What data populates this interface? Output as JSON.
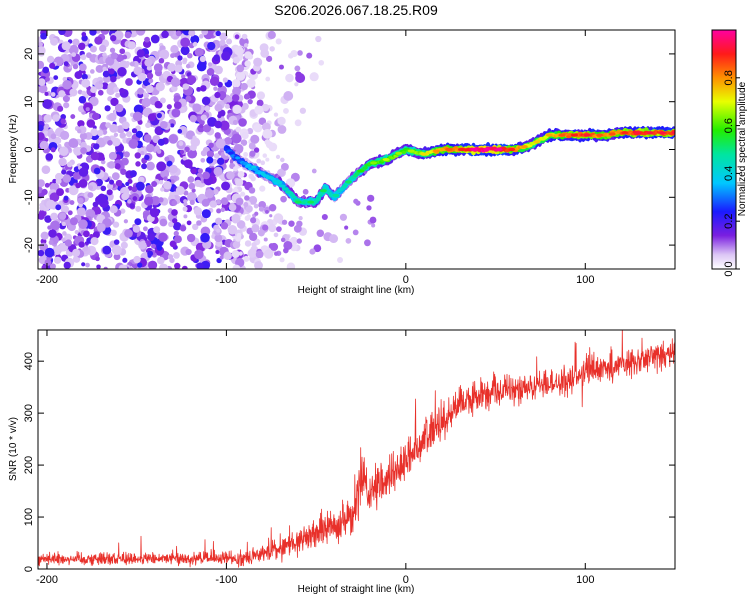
{
  "chart_data": [
    {
      "type": "heatmap",
      "title": "S206.2026.067.18.25.R09",
      "xlabel": "Height of straight line (km)",
      "ylabel": "Frequency (Hz)",
      "xlim": [
        -205,
        150
      ],
      "ylim": [
        -25,
        25
      ],
      "xticks": [
        -200,
        -100,
        0,
        100
      ],
      "xtick_labels": [
        "-200",
        "-100",
        "0",
        "100"
      ],
      "yticks": [
        -20,
        -10,
        0,
        10,
        20
      ],
      "ytick_labels": [
        "-20",
        "-10",
        "0",
        "10",
        "20"
      ],
      "colorbar": {
        "label": "Normalized spectral amplitude",
        "ticks": [
          0.0,
          0.2,
          0.4,
          0.6,
          0.8
        ],
        "tick_labels": [
          "0.0",
          "0.2",
          "0.4",
          "0.6",
          "0.8"
        ],
        "range": [
          0,
          1
        ]
      },
      "ridge": {
        "description": "peak-frequency track",
        "x": [
          -100,
          -90,
          -80,
          -70,
          -60,
          -50,
          -45,
          -40,
          -30,
          -20,
          -10,
          0,
          10,
          20,
          30,
          40,
          50,
          60,
          70,
          80,
          90,
          100,
          110,
          120,
          130,
          140,
          150
        ],
        "y": [
          0,
          -3,
          -5,
          -7,
          -11,
          -11,
          -8,
          -10,
          -6,
          -3,
          -2,
          0,
          -1,
          0,
          0,
          0,
          0,
          0,
          1,
          3,
          3,
          3,
          3,
          3.5,
          3.5,
          3.5,
          3.5
        ],
        "amplitude": [
          0.25,
          0.3,
          0.35,
          0.4,
          0.45,
          0.45,
          0.45,
          0.4,
          0.45,
          0.55,
          0.6,
          0.55,
          0.65,
          0.75,
          0.8,
          0.95,
          0.95,
          0.8,
          0.65,
          0.7,
          0.8,
          0.85,
          0.75,
          0.8,
          0.85,
          0.85,
          0.85
        ]
      },
      "noise_region_km": [
        -205,
        -95
      ]
    },
    {
      "type": "line",
      "title": "",
      "xlabel": "Height of straight line (km)",
      "ylabel": "SNR (10 * v/v)",
      "xlim": [
        -205,
        150
      ],
      "ylim": [
        0,
        460
      ],
      "xticks": [
        -200,
        -100,
        0,
        100
      ],
      "xtick_labels": [
        "-200",
        "-100",
        "0",
        "100"
      ],
      "yticks": [
        0,
        100,
        200,
        300,
        400
      ],
      "ytick_labels": [
        "0",
        "100",
        "200",
        "300",
        "400"
      ],
      "series": [
        {
          "name": "SNR",
          "color": "#e8302a",
          "x": [
            -205,
            -180,
            -160,
            -140,
            -120,
            -100,
            -90,
            -80,
            -70,
            -60,
            -50,
            -40,
            -30,
            -25,
            -20,
            -10,
            0,
            10,
            20,
            30,
            40,
            50,
            60,
            70,
            80,
            90,
            100,
            110,
            120,
            130,
            140,
            150
          ],
          "y": [
            20,
            20,
            20,
            20,
            20,
            20,
            22,
            28,
            40,
            55,
            70,
            85,
            100,
            170,
            140,
            175,
            210,
            250,
            280,
            320,
            330,
            340,
            345,
            350,
            355,
            360,
            380,
            385,
            395,
            400,
            410,
            420
          ],
          "noise_amplitude": [
            12,
            12,
            12,
            12,
            12,
            12,
            14,
            16,
            20,
            24,
            28,
            32,
            36,
            60,
            40,
            38,
            36,
            34,
            32,
            30,
            28,
            28,
            26,
            26,
            26,
            26,
            30,
            28,
            28,
            26,
            26,
            26
          ]
        }
      ]
    }
  ]
}
